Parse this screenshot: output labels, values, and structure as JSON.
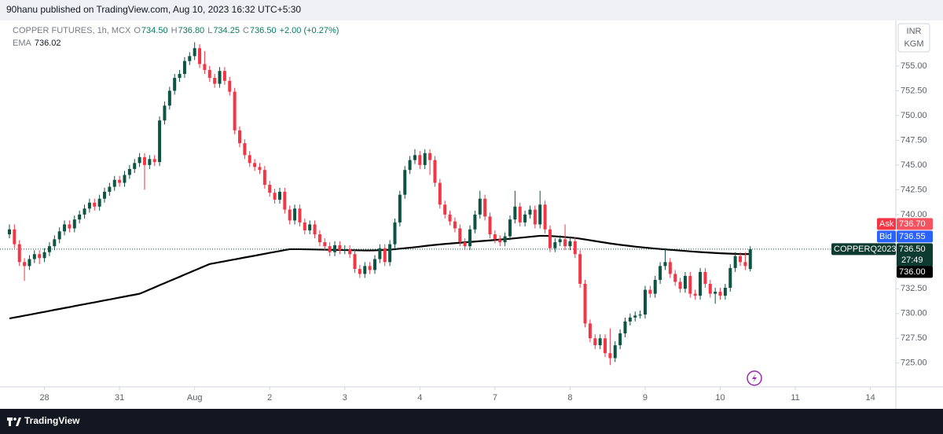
{
  "header": "90hanu published on TradingView.com, Aug 10, 2023 16:32 UTC+5:30",
  "footer": "TradingView",
  "chart_data": {
    "type": "candlestick",
    "title": "COPPER FUTURES, 1h, MCX",
    "legend": [
      {
        "label": "O",
        "value": "734.50"
      },
      {
        "label": "H",
        "value": "736.80"
      },
      {
        "label": "L",
        "value": "734.25"
      },
      {
        "label": "C",
        "value": "736.50"
      }
    ],
    "change": "+2.00 (+0.27%)",
    "currency": [
      "INR",
      "KGM"
    ],
    "up_color": "#0e5443",
    "down_color": "#f23645",
    "grid": false,
    "xlim": [
      -1.88,
      177.08
    ],
    "xticks": [
      {
        "value": 7,
        "label": "28"
      },
      {
        "value": 22,
        "label": "31"
      },
      {
        "value": 37,
        "label": "Aug"
      },
      {
        "value": 52,
        "label": "2"
      },
      {
        "value": 67,
        "label": "3"
      },
      {
        "value": 82,
        "label": "4"
      },
      {
        "value": 97,
        "label": "7"
      },
      {
        "value": 112,
        "label": "8"
      },
      {
        "value": 127,
        "label": "9"
      },
      {
        "value": 142,
        "label": "10"
      },
      {
        "value": 157,
        "label": "11"
      },
      {
        "value": 172,
        "label": "14"
      }
    ],
    "ylim": [
      722.6,
      759.6
    ],
    "yticks": [
      {
        "value": 725,
        "label": "725.00"
      },
      {
        "value": 727.5,
        "label": "727.50"
      },
      {
        "value": 730,
        "label": "730.00"
      },
      {
        "value": 732.5,
        "label": "732.50"
      },
      {
        "value": 735,
        "label": "735.00"
      },
      {
        "value": 737.5,
        "label": "737.50"
      },
      {
        "value": 740,
        "label": "740.00"
      },
      {
        "value": 742.5,
        "label": "742.50"
      },
      {
        "value": 745,
        "label": "745.00"
      },
      {
        "value": 747.5,
        "label": "747.50"
      },
      {
        "value": 750,
        "label": "750.00"
      },
      {
        "value": 752.5,
        "label": "752.50"
      },
      {
        "value": 755,
        "label": "755.00"
      }
    ],
    "open": [
      738.0,
      738.5,
      737.0,
      735.2,
      734.8,
      735.5,
      736.0,
      735.6,
      736.2,
      736.8,
      737.5,
      738.3,
      739.0,
      738.6,
      739.5,
      740.0,
      740.6,
      741.2,
      740.8,
      741.6,
      742.3,
      742.8,
      743.5,
      743.2,
      744.0,
      744.6,
      745.2,
      745.8,
      745.0,
      745.6,
      745.3,
      749.5,
      751.0,
      752.5,
      753.8,
      754.2,
      755.5,
      756.0,
      756.8,
      755.2,
      754.6,
      753.8,
      753.2,
      754.5,
      753.5,
      752.4,
      748.5,
      747.2,
      746.0,
      745.2,
      744.8,
      744.5,
      743.0,
      742.2,
      741.5,
      742.3,
      740.5,
      739.4,
      740.6,
      739.2,
      738.4,
      739.0,
      738.0,
      737.2,
      736.8,
      736.2,
      736.9,
      736.4,
      736.5,
      736.0,
      734.5,
      734.0,
      734.8,
      734.4,
      735.5,
      736.6,
      735.2,
      737.0,
      739.2,
      742.0,
      744.5,
      745.5,
      746.0,
      745.0,
      746.2,
      745.5,
      743.2,
      741.0,
      740.0,
      739.3,
      738.6,
      737.2,
      736.8,
      738.5,
      740.0,
      741.6,
      739.8,
      738.0,
      737.5,
      737.2,
      737.8,
      739.5,
      740.8,
      739.2,
      740.0,
      740.5,
      739.0,
      741.0,
      738.5,
      736.6,
      737.2,
      737.5,
      736.8,
      737.3,
      736.0,
      733.0,
      729.0,
      727.5,
      726.8,
      727.5,
      726.0,
      725.5,
      726.8,
      728.0,
      729.2,
      729.6,
      729.8,
      729.9,
      732.4,
      732.0,
      733.4,
      734.8,
      735.2,
      734.0,
      733.2,
      732.5,
      733.8,
      732.0,
      731.8,
      734.2,
      733.0,
      732.0,
      732.2,
      731.8,
      732.6,
      734.6,
      735.8,
      735.2,
      734.5
    ],
    "high": [
      739.0,
      739.0,
      737.4,
      735.6,
      735.9,
      736.4,
      736.4,
      736.6,
      737.2,
      737.9,
      738.7,
      739.4,
      739.4,
      739.9,
      740.4,
      741.0,
      741.6,
      741.6,
      742.0,
      742.7,
      743.2,
      743.9,
      743.9,
      744.4,
      745.0,
      745.6,
      746.2,
      746.2,
      746.0,
      746.0,
      749.9,
      751.4,
      752.9,
      754.2,
      754.6,
      755.9,
      756.4,
      757.4,
      757.2,
      756.5,
      755.0,
      754.2,
      754.9,
      754.9,
      753.9,
      752.8,
      748.9,
      747.6,
      746.4,
      745.6,
      745.2,
      744.9,
      743.4,
      742.6,
      742.7,
      742.7,
      740.9,
      741.0,
      741.0,
      739.6,
      739.4,
      739.4,
      738.4,
      737.6,
      737.2,
      737.3,
      737.3,
      736.9,
      736.9,
      736.4,
      734.9,
      735.2,
      735.2,
      735.9,
      737.0,
      737.0,
      737.4,
      739.6,
      742.4,
      744.9,
      745.9,
      746.6,
      746.4,
      746.6,
      746.6,
      745.9,
      743.6,
      741.4,
      740.4,
      739.7,
      739.0,
      737.6,
      738.9,
      740.4,
      742.4,
      742.0,
      740.2,
      738.4,
      737.9,
      738.2,
      739.9,
      742.4,
      741.2,
      740.4,
      740.9,
      740.9,
      742.4,
      741.4,
      738.9,
      737.6,
      737.9,
      739.0,
      737.7,
      737.7,
      736.4,
      733.4,
      729.4,
      727.9,
      727.9,
      727.9,
      728.5,
      727.2,
      728.4,
      729.6,
      730.0,
      730.2,
      730.3,
      732.8,
      732.8,
      733.8,
      735.2,
      736.6,
      735.6,
      734.4,
      733.6,
      734.2,
      734.2,
      732.4,
      734.6,
      734.6,
      733.4,
      732.6,
      732.6,
      733.0,
      735.0,
      736.2,
      736.2,
      736.2,
      736.8
    ],
    "low": [
      737.6,
      736.6,
      734.8,
      733.3,
      734.4,
      735.1,
      735.0,
      735.2,
      735.8,
      736.4,
      737.1,
      737.9,
      738.2,
      738.2,
      739.1,
      739.6,
      740.2,
      740.4,
      740.4,
      741.2,
      741.9,
      742.4,
      742.8,
      742.8,
      743.6,
      744.2,
      744.8,
      742.5,
      744.6,
      744.9,
      744.9,
      749.1,
      750.6,
      752.1,
      753.4,
      753.8,
      755.1,
      755.6,
      754.8,
      754.2,
      753.4,
      752.8,
      752.8,
      753.1,
      752.0,
      748.1,
      746.8,
      745.6,
      744.8,
      744.4,
      744.1,
      742.6,
      741.8,
      741.1,
      741.1,
      740.1,
      739.0,
      739.0,
      738.8,
      738.0,
      738.0,
      737.6,
      736.8,
      736.4,
      735.8,
      735.8,
      736.0,
      736.0,
      735.6,
      734.1,
      733.6,
      733.6,
      734.0,
      734.0,
      735.1,
      734.8,
      734.8,
      736.6,
      738.8,
      741.6,
      744.1,
      745.1,
      744.6,
      744.6,
      744.0,
      742.8,
      740.6,
      739.6,
      738.9,
      738.2,
      736.8,
      736.4,
      736.4,
      738.1,
      739.6,
      739.4,
      737.6,
      737.1,
      736.8,
      736.8,
      737.4,
      739.1,
      738.8,
      738.8,
      739.6,
      738.6,
      738.6,
      738.1,
      736.2,
      736.2,
      736.8,
      736.4,
      736.4,
      735.6,
      732.6,
      728.6,
      727.1,
      726.4,
      726.4,
      725.6,
      724.8,
      725.1,
      726.4,
      727.6,
      728.8,
      729.2,
      729.5,
      729.5,
      731.6,
      731.6,
      733.0,
      734.4,
      733.6,
      732.8,
      732.1,
      732.1,
      731.6,
      731.4,
      731.4,
      732.6,
      731.6,
      731.0,
      731.4,
      731.4,
      732.2,
      734.2,
      734.8,
      734.4,
      734.25
    ],
    "close": [
      738.5,
      737.0,
      735.2,
      734.8,
      735.5,
      736.0,
      735.6,
      736.2,
      736.8,
      737.5,
      738.3,
      739.0,
      738.6,
      739.5,
      740.0,
      740.6,
      741.2,
      740.8,
      741.6,
      742.3,
      742.8,
      743.5,
      743.2,
      744.0,
      744.6,
      745.2,
      745.8,
      745.0,
      745.6,
      745.3,
      749.5,
      751.0,
      752.5,
      753.8,
      754.2,
      755.5,
      756.0,
      756.8,
      755.2,
      754.6,
      753.8,
      753.2,
      754.5,
      753.5,
      752.4,
      748.5,
      747.2,
      746.0,
      745.2,
      744.8,
      744.5,
      743.0,
      742.2,
      741.5,
      742.3,
      740.5,
      739.4,
      740.6,
      739.2,
      738.4,
      739.0,
      738.0,
      737.2,
      736.8,
      736.2,
      736.9,
      736.4,
      736.5,
      736.0,
      734.5,
      734.0,
      734.8,
      734.4,
      735.5,
      736.6,
      735.2,
      737.0,
      739.2,
      742.0,
      744.5,
      745.5,
      746.0,
      745.0,
      746.2,
      745.5,
      743.2,
      741.0,
      740.0,
      739.3,
      738.6,
      737.2,
      736.8,
      738.5,
      740.0,
      741.6,
      739.8,
      738.0,
      737.5,
      737.2,
      737.8,
      739.5,
      740.8,
      739.2,
      740.0,
      740.5,
      739.0,
      741.0,
      738.5,
      736.6,
      737.2,
      737.5,
      736.8,
      737.3,
      736.0,
      733.0,
      729.0,
      727.5,
      726.8,
      727.5,
      726.0,
      725.5,
      726.8,
      728.0,
      729.2,
      729.6,
      729.8,
      729.9,
      732.4,
      732.0,
      733.4,
      734.8,
      735.2,
      734.0,
      733.2,
      732.5,
      733.8,
      732.0,
      731.8,
      734.2,
      733.0,
      732.0,
      732.2,
      731.8,
      732.6,
      734.6,
      735.8,
      735.2,
      734.8,
      736.5
    ],
    "ema": {
      "name": "EMA",
      "value_label": "736.02",
      "axis_label": "736.00",
      "color": "#000000",
      "values": [
        729.5,
        729.6,
        729.69,
        729.79,
        729.88,
        729.98,
        730.08,
        730.17,
        730.27,
        730.37,
        730.46,
        730.56,
        730.65,
        730.75,
        730.85,
        730.94,
        731.04,
        731.13,
        731.23,
        731.33,
        731.42,
        731.52,
        731.62,
        731.71,
        731.81,
        731.9,
        732.0,
        732.21,
        732.43,
        732.64,
        732.86,
        733.07,
        733.29,
        733.5,
        733.71,
        733.93,
        734.14,
        734.36,
        734.57,
        734.79,
        735.0,
        735.09,
        735.19,
        735.28,
        735.38,
        735.47,
        735.56,
        735.66,
        735.75,
        735.84,
        735.94,
        736.03,
        736.13,
        736.22,
        736.31,
        736.41,
        736.5,
        736.5,
        736.5,
        736.49,
        736.48,
        736.47,
        736.46,
        736.45,
        736.44,
        736.43,
        736.42,
        736.41,
        736.4,
        736.39,
        736.38,
        736.37,
        736.37,
        736.38,
        736.4,
        736.42,
        736.45,
        736.5,
        736.55,
        736.6,
        736.65,
        736.7,
        736.76,
        736.82,
        736.88,
        736.93,
        736.98,
        737.03,
        737.07,
        737.11,
        737.15,
        737.19,
        737.23,
        737.27,
        737.31,
        737.35,
        737.39,
        737.43,
        737.47,
        737.51,
        737.55,
        737.6,
        737.65,
        737.7,
        737.75,
        737.8,
        737.85,
        737.85,
        737.83,
        737.8,
        737.76,
        737.72,
        737.68,
        737.63,
        737.56,
        737.48,
        737.4,
        737.32,
        737.24,
        737.16,
        737.08,
        737.01,
        736.94,
        736.88,
        736.82,
        736.76,
        736.71,
        736.66,
        736.61,
        736.56,
        736.52,
        736.48,
        736.44,
        736.4,
        736.36,
        736.32,
        736.28,
        736.24,
        736.21,
        736.18,
        736.15,
        736.12,
        736.09,
        736.07,
        736.05,
        736.03,
        736.01,
        736.0,
        736.02
      ]
    },
    "ask": {
      "label": "Ask",
      "value": 736.7,
      "value_label": "736.70"
    },
    "bid": {
      "label": "Bid",
      "value": 736.55,
      "value_label": "736.55"
    },
    "last_price": {
      "label": "COPPERQ2023",
      "value": 736.5,
      "value_label": "736.50",
      "countdown": "27:49"
    }
  }
}
